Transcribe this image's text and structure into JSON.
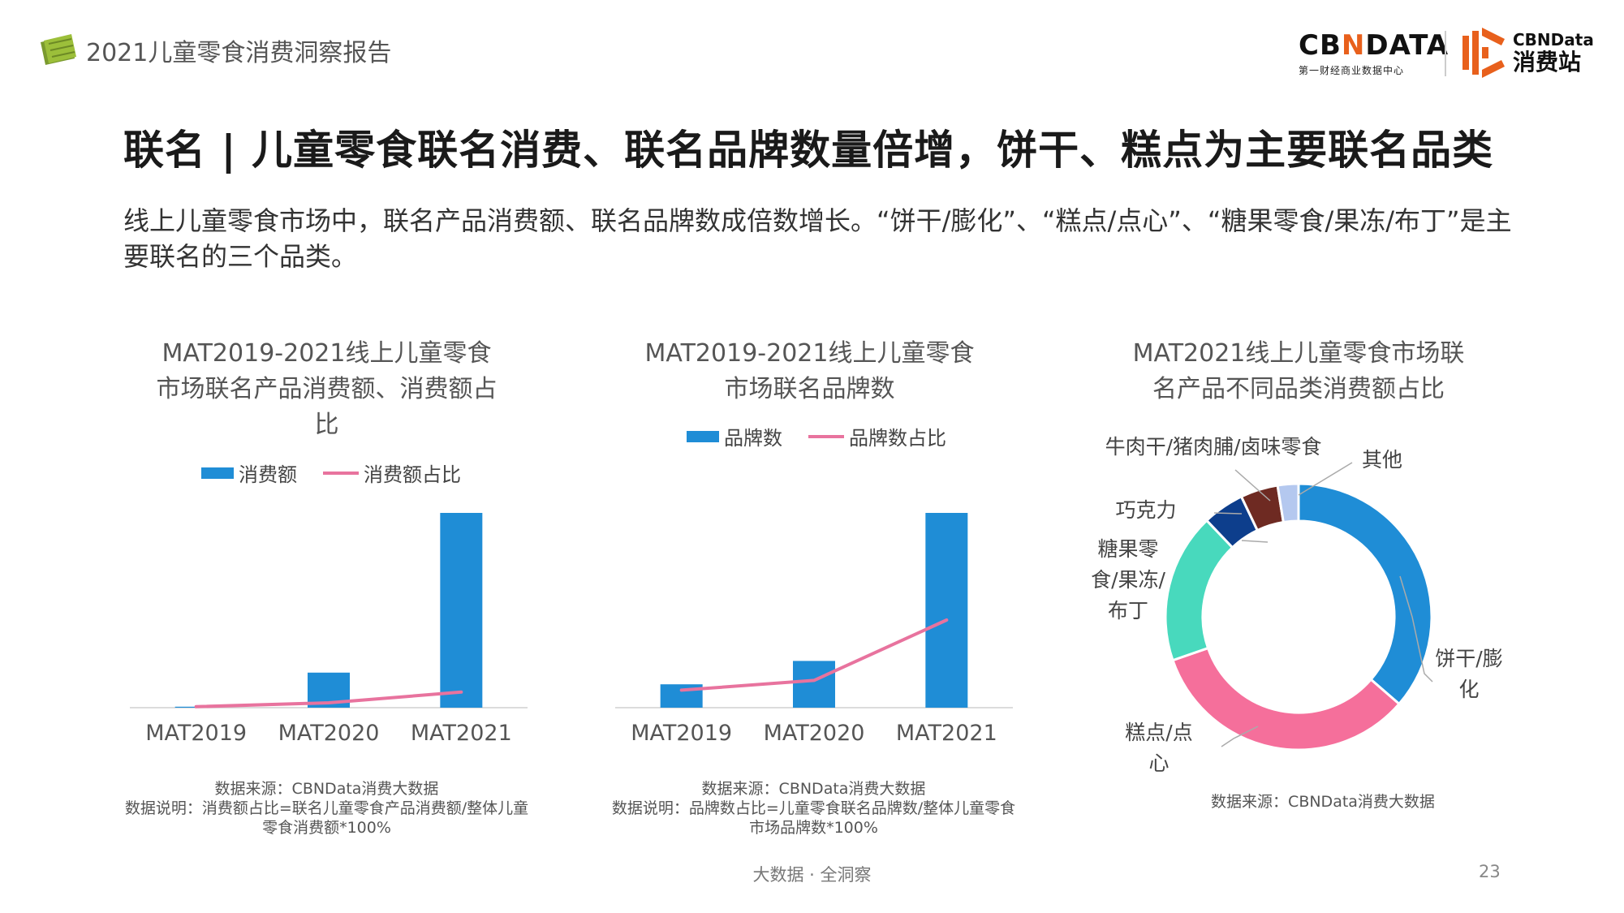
{
  "header": {
    "report_title": "2021儿童零食消费洞察报告",
    "logo_main": "CBNDATA",
    "logo_main_left": "CB",
    "logo_main_x": "N",
    "logo_main_right": "DATA",
    "logo_tagline": "第一财经商业数据中心",
    "logo_sub_en": "CBNData",
    "logo_sub_zh": "消费站"
  },
  "main_title": "联名 | 儿童零食联名消费、联名品牌数量倍增，饼干、糕点为主要联名品类",
  "subtitle": "线上儿童零食市场中，联名产品消费额、联名品牌数成倍数增长。“饼干/膨化”、“糕点/点心”、“糖果零食/果冻/布丁”是主要联名的三个品类。",
  "footer": {
    "slogan": "大数据 · 全洞察",
    "page": "23"
  },
  "colors": {
    "bar": "#1f8dd6",
    "line": "#e8739e"
  },
  "chart_data": [
    {
      "type": "bar",
      "title": "MAT2019-2021线上儿童零食市场联名产品消费额、消费额占比",
      "categories": [
        "MAT2019",
        "MAT2020",
        "MAT2021"
      ],
      "series": [
        {
          "name": "消费额",
          "type": "bar",
          "values": [
            0.5,
            18,
            100
          ]
        },
        {
          "name": "消费额占比",
          "type": "line",
          "values": [
            0.5,
            2.5,
            8
          ]
        }
      ],
      "legend": [
        "消费额",
        "消费额占比"
      ],
      "ylim": [
        0,
        100
      ],
      "grid": false,
      "notes": [
        "数据来源：CBNData消费大数据",
        "数据说明：消费额占比=联名儿童零食产品消费额/整体儿童",
        "零食消费额*100%"
      ]
    },
    {
      "type": "bar",
      "title": "MAT2019-2021线上儿童零食市场联名品牌数",
      "categories": [
        "MAT2019",
        "MAT2020",
        "MAT2021"
      ],
      "series": [
        {
          "name": "品牌数",
          "type": "bar",
          "values": [
            12,
            24,
            100
          ]
        },
        {
          "name": "品牌数占比",
          "type": "line",
          "values": [
            9,
            14,
            45
          ]
        }
      ],
      "legend": [
        "品牌数",
        "品牌数占比"
      ],
      "ylim": [
        0,
        100
      ],
      "grid": false,
      "notes": [
        "数据来源：CBNData消费大数据",
        "数据说明：品牌数占比=儿童零食联名品牌数/整体儿童零食",
        "市场品牌数*100%"
      ]
    },
    {
      "type": "pie",
      "title": "MAT2021线上儿童零食市场联名产品不同品类消费额占比",
      "labels": [
        "饼干/膨化",
        "糕点/点心",
        "糖果零食/果冻/布丁",
        "巧克力",
        "牛肉干/猪肉脯/卤味零食",
        "其他"
      ],
      "values": [
        36,
        33,
        18,
        5,
        4.5,
        2.5
      ],
      "colors": [
        "#1f8dd6",
        "#f56f9b",
        "#48d9bd",
        "#0d3e8c",
        "#6e2a22",
        "#b4c8ef"
      ],
      "notes": [
        "数据来源：CBNData消费大数据"
      ]
    }
  ],
  "chart_titles_lines": [
    [
      "MAT2019-2021线上儿童零食",
      "市场联名产品消费额、消费额占",
      "比"
    ],
    [
      "MAT2019-2021线上儿童零食",
      "市场联名品牌数"
    ],
    [
      "MAT2021线上儿童零食市场联",
      "名产品不同品类消费额占比"
    ]
  ],
  "pie_label_lines": {
    "biscuit": [
      "饼干/膨",
      "化"
    ],
    "cake": [
      "糕点/点",
      "心"
    ],
    "candy": [
      "糖果零",
      "食/果冻/",
      "布丁"
    ],
    "chocolate": [
      "巧克力"
    ],
    "jerky": [
      "牛肉干/猪肉脯/卤味零食"
    ],
    "other": [
      "其他"
    ]
  }
}
